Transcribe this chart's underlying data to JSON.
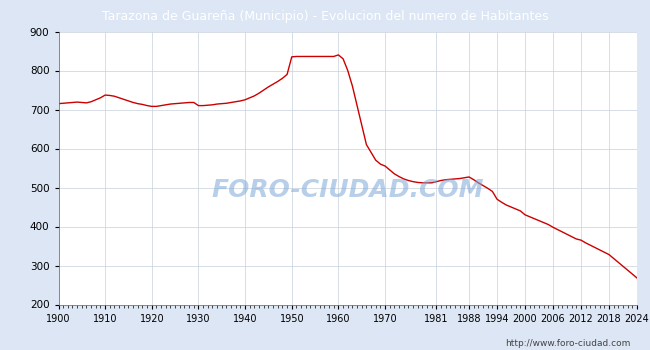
{
  "title": "Tarazona de Guareña (Municipio) - Evolucion del numero de Habitantes",
  "title_bg_color": "#5b8dd9",
  "title_text_color": "#ffffff",
  "line_color": "#cc0000",
  "bg_color": "#dce6f5",
  "plot_bg_color": "#f0f4f8",
  "grid_color": "#c8d0dc",
  "watermark": "FORO-CIUDAD.COM",
  "url": "http://www.foro-ciudad.com",
  "ylim": [
    200,
    900
  ],
  "yticks": [
    200,
    300,
    400,
    500,
    600,
    700,
    800,
    900
  ],
  "xtick_labels": [
    "1900",
    "1910",
    "1920",
    "1930",
    "1940",
    "1950",
    "1960",
    "1970",
    "1981",
    "1988",
    "1994",
    "2000",
    "2006",
    "2012",
    "2018",
    "2024"
  ],
  "years": [
    1900,
    1901,
    1902,
    1903,
    1904,
    1905,
    1906,
    1907,
    1908,
    1909,
    1910,
    1911,
    1912,
    1913,
    1914,
    1915,
    1916,
    1917,
    1918,
    1919,
    1920,
    1921,
    1922,
    1923,
    1924,
    1925,
    1926,
    1927,
    1928,
    1929,
    1930,
    1931,
    1932,
    1933,
    1934,
    1935,
    1936,
    1937,
    1938,
    1939,
    1940,
    1941,
    1942,
    1943,
    1944,
    1945,
    1946,
    1947,
    1948,
    1949,
    1950,
    1951,
    1952,
    1953,
    1954,
    1955,
    1956,
    1957,
    1958,
    1959,
    1960,
    1961,
    1962,
    1963,
    1964,
    1965,
    1966,
    1967,
    1968,
    1969,
    1970,
    1971,
    1972,
    1973,
    1974,
    1975,
    1976,
    1977,
    1978,
    1979,
    1980,
    1981,
    1982,
    1983,
    1984,
    1985,
    1986,
    1987,
    1988,
    1989,
    1990,
    1991,
    1992,
    1993,
    1994,
    1995,
    1996,
    1997,
    1998,
    1999,
    2000,
    2001,
    2002,
    2003,
    2004,
    2005,
    2006,
    2007,
    2008,
    2009,
    2010,
    2011,
    2012,
    2013,
    2014,
    2015,
    2016,
    2017,
    2018,
    2019,
    2020,
    2021,
    2022,
    2023,
    2024
  ],
  "population": [
    715,
    716,
    717,
    718,
    719,
    718,
    717,
    720,
    725,
    730,
    737,
    736,
    734,
    730,
    726,
    722,
    718,
    715,
    713,
    710,
    708,
    708,
    710,
    712,
    714,
    715,
    716,
    717,
    718,
    718,
    710,
    710,
    711,
    712,
    714,
    715,
    716,
    718,
    720,
    722,
    725,
    730,
    735,
    742,
    750,
    758,
    765,
    772,
    780,
    790,
    835,
    836,
    836,
    836,
    836,
    836,
    836,
    836,
    836,
    836,
    840,
    830,
    800,
    760,
    710,
    660,
    610,
    590,
    570,
    560,
    555,
    545,
    535,
    528,
    522,
    518,
    515,
    513,
    512,
    512,
    512,
    515,
    518,
    520,
    521,
    522,
    523,
    525,
    527,
    520,
    512,
    505,
    498,
    490,
    470,
    462,
    455,
    450,
    445,
    440,
    430,
    425,
    420,
    415,
    410,
    405,
    398,
    392,
    386,
    380,
    374,
    368,
    365,
    358,
    352,
    346,
    340,
    334,
    328,
    318,
    308,
    298,
    288,
    278,
    268
  ]
}
